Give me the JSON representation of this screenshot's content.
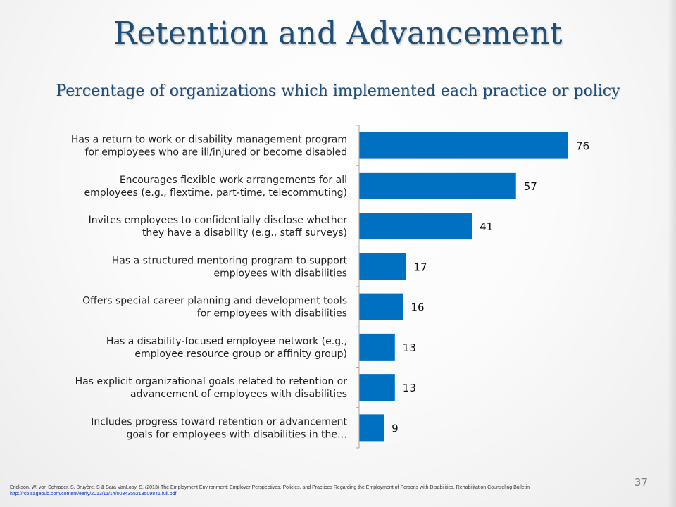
{
  "slide": {
    "title": "Retention and Advancement",
    "page_number": "37",
    "citation_text": "Erickson, W. von Schrader, S. Bruyère, S & Sara VanLooy, S. (2013) The Employment Environment: Employer Perspectives, Policies, and Practices Regarding the Employment of Persons with Disabilities. Rehabilitation Counseling Bulletin",
    "citation_link": "http://rcb.sagepub.com/content/early/2013/11/14/0034355213509841.full.pdf"
  },
  "chart_data": {
    "type": "bar",
    "orientation": "horizontal",
    "title": "Percentage of organizations which implemented each practice or policy",
    "xlabel": "",
    "ylabel": "",
    "xlim": [
      0,
      100
    ],
    "grid": false,
    "legend": "none",
    "bar_color": "#0070c0",
    "axis_color": "#a6a6a6",
    "categories": [
      [
        "Has a return to work or disability management program",
        "for employees who are ill/injured or become disabled"
      ],
      [
        "Encourages flexible work arrangements for all",
        "employees (e.g., flextime, part-time, telecommuting)"
      ],
      [
        "Invites employees to confidentially disclose whether",
        "they have a disability (e.g., staff surveys)"
      ],
      [
        "Has a structured mentoring program to support",
        "employees with disabilities"
      ],
      [
        "Offers special career planning and development tools",
        "for employees with disabilities"
      ],
      [
        "Has a disability-focused employee network (e.g.,",
        "employee resource group or affinity group)"
      ],
      [
        "Has explicit organizational goals related to retention or",
        "advancement of employees with disabilities"
      ],
      [
        "Includes progress toward retention or advancement",
        "goals for employees with disabilities in the…"
      ]
    ],
    "values": [
      76,
      57,
      41,
      17,
      16,
      13,
      13,
      9
    ],
    "data_labels": [
      "76",
      "57",
      "41",
      "17",
      "16",
      "13",
      "13",
      "9"
    ]
  }
}
